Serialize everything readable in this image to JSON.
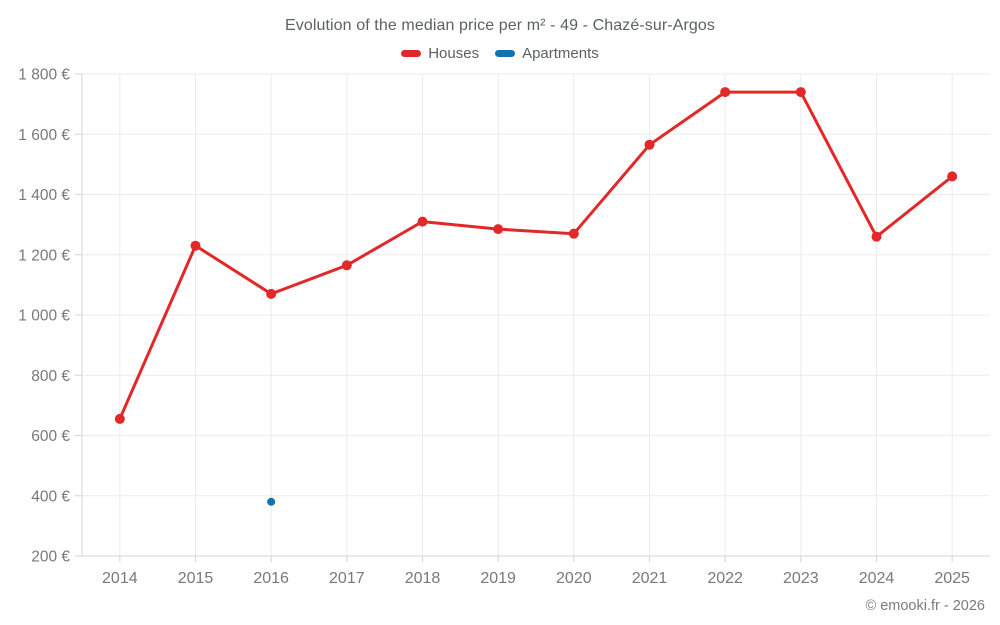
{
  "footer": {
    "credit": "© emooki.fr - 2026"
  },
  "chart_data": {
    "type": "line",
    "title": "Evolution of the median price per m² - 49 - Chazé-sur-Argos",
    "categories": [
      "2014",
      "2015",
      "2016",
      "2017",
      "2018",
      "2019",
      "2020",
      "2021",
      "2022",
      "2023",
      "2024",
      "2025"
    ],
    "series": [
      {
        "name": "Houses",
        "color": "#e22828",
        "marker_radius": 5,
        "line_width": 3,
        "values": [
          655,
          1230,
          1070,
          1165,
          1310,
          1285,
          1270,
          1565,
          1740,
          1740,
          1260,
          1460
        ]
      },
      {
        "name": "Apartments",
        "color": "#1273ae",
        "marker_radius": 4,
        "line_width": 3,
        "values": [
          null,
          null,
          380,
          null,
          null,
          null,
          null,
          null,
          null,
          null,
          null,
          null
        ]
      }
    ],
    "xlabel": "",
    "ylabel": "",
    "ylim": [
      200,
      1800
    ],
    "yticks": [
      200,
      400,
      600,
      800,
      1000,
      1200,
      1400,
      1600,
      1800
    ],
    "ytick_suffix": " €",
    "thousands_separator": " ",
    "grid": true,
    "legend_position": "top",
    "style": {
      "grid_color": "#ebebeb",
      "axis_color": "#d4d4d4",
      "tick_label_color": "#797979",
      "tick_font_size": 15.5
    }
  }
}
